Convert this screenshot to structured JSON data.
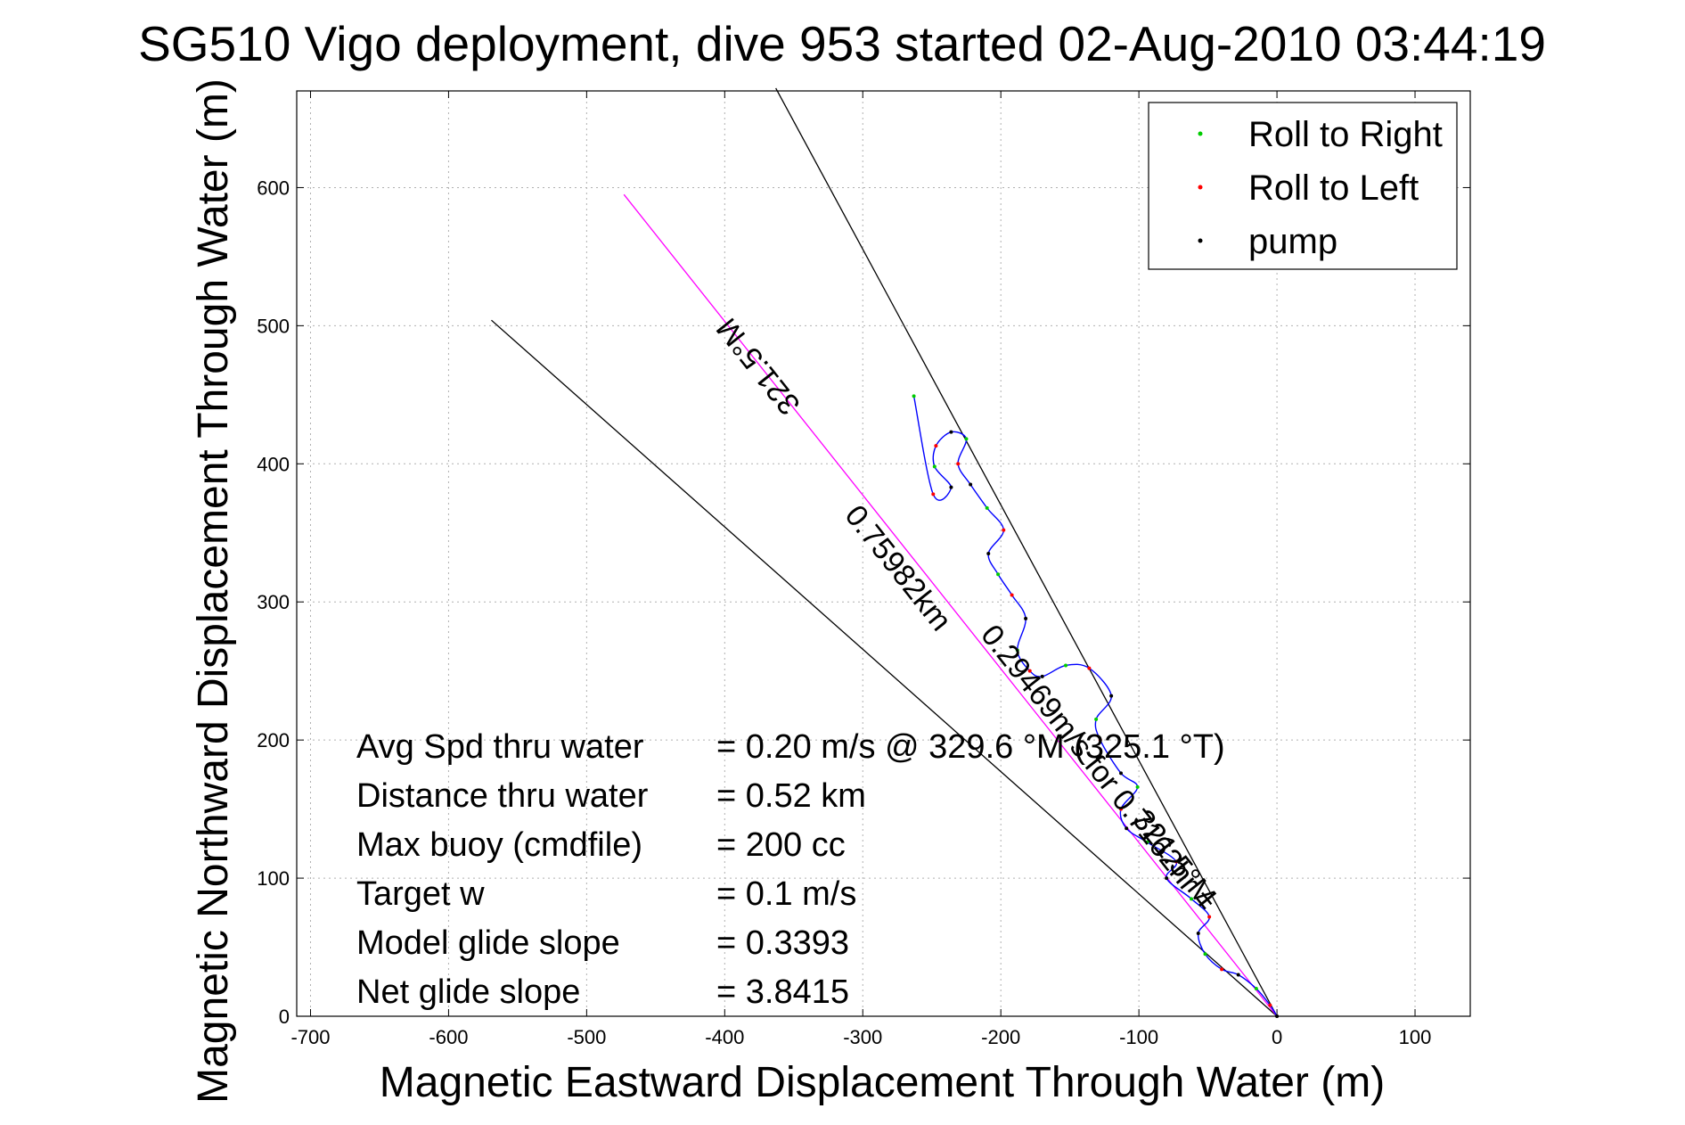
{
  "chart_data": {
    "type": "line",
    "title": "SG510 Vigo deployment, dive 953 started 02-Aug-2010 03:44:19",
    "xlabel": "Magnetic Eastward Displacement Through Water (m)",
    "ylabel": "Magnetic Northward Displacement Through Water (m)",
    "xlim": [
      -710,
      140
    ],
    "ylim": [
      0,
      670
    ],
    "xticks": [
      -700,
      -600,
      -500,
      -400,
      -300,
      -200,
      -100,
      0,
      100
    ],
    "yticks": [
      0,
      100,
      200,
      300,
      400,
      500,
      600
    ],
    "grid": true,
    "legend_position": "top-right",
    "legend": [
      {
        "label": "Roll to Right",
        "color": "#00cc00"
      },
      {
        "label": "Roll to Left",
        "color": "#ff0000"
      },
      {
        "label": "pump",
        "color": "#000000"
      }
    ],
    "lines": [
      {
        "role": "envelope-right",
        "color": "#000000",
        "x": [
          0,
          -363
        ],
        "y": [
          0,
          672
        ]
      },
      {
        "role": "envelope-left",
        "color": "#000000",
        "x": [
          0,
          -569
        ],
        "y": [
          0,
          504
        ]
      },
      {
        "role": "heading-line",
        "color": "#ff00ff",
        "x": [
          0,
          -473
        ],
        "y": [
          0,
          595
        ]
      }
    ],
    "series": [
      {
        "role": "glider-track",
        "color": "#0000ff",
        "x": [
          0,
          -5,
          -15,
          -28,
          -40,
          -52,
          -57,
          -49,
          -62,
          -80,
          -73,
          -94,
          -109,
          -113,
          -101,
          -113,
          -128,
          -131,
          -120,
          -136,
          -153,
          -170,
          -179,
          -188,
          -182,
          -192,
          -202,
          -209,
          -198,
          -210,
          -222,
          -231,
          -225,
          -236,
          -247,
          -248,
          -236,
          -249,
          -263
        ],
        "y": [
          0,
          8,
          20,
          30,
          34,
          45,
          60,
          72,
          85,
          100,
          112,
          126,
          136,
          150,
          166,
          176,
          200,
          215,
          232,
          252,
          254,
          246,
          250,
          265,
          288,
          305,
          320,
          335,
          352,
          368,
          385,
          400,
          418,
          423,
          413,
          398,
          383,
          378,
          449
        ]
      }
    ],
    "annotations": [
      {
        "text": "321.5°M",
        "x": -370,
        "y": 475,
        "rotation_deg": 231.5
      },
      {
        "text": "0.75982km",
        "x": -280,
        "y": 320,
        "rotation_deg": 51.5
      },
      {
        "text": "0.29469m/s for 0.7162hr =",
        "x": -135,
        "y": 175,
        "rotation_deg": 51.5
      },
      {
        "text": "321.5°M",
        "x": -80,
        "y": 110,
        "rotation_deg": 51.5
      }
    ]
  },
  "info_panel": {
    "rows": [
      {
        "label": "Avg Spd thru water",
        "value": "=  0.20 m/s @ 329.6 °M (325.1 °T)"
      },
      {
        "label": "Distance thru water",
        "value": "=  0.52 km"
      },
      {
        "label": "Max buoy (cmdfile)",
        "value": "= 200 cc"
      },
      {
        "label": "Target w",
        "value": "= 0.1 m/s"
      },
      {
        "label": "Model glide slope",
        "value": "= 0.3393"
      },
      {
        "label": "Net glide slope",
        "value": "= 3.8415"
      }
    ]
  }
}
